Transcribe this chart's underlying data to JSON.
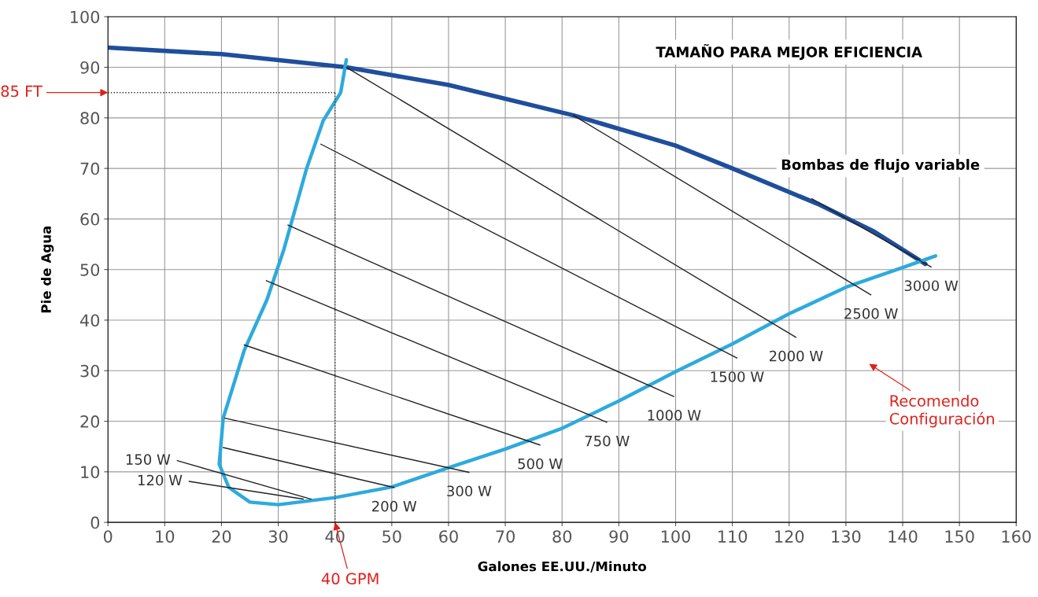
{
  "chart_data": {
    "type": "line",
    "xlabel": "Galones EE.UU./Minuto",
    "ylabel": "Pie de Agua",
    "xlim": [
      0,
      160
    ],
    "ylim": [
      0,
      100
    ],
    "xticks": [
      0,
      10,
      20,
      30,
      40,
      50,
      60,
      70,
      80,
      90,
      100,
      110,
      120,
      130,
      140,
      150,
      160
    ],
    "yticks": [
      0,
      10,
      20,
      30,
      40,
      50,
      60,
      70,
      80,
      90,
      100
    ],
    "grid": true,
    "legend": false,
    "marker": "none",
    "line_style": "solid",
    "series": [
      {
        "color": "#1f4e9c",
        "x": [
          0,
          20,
          42,
          60,
          82,
          100,
          110,
          125,
          135,
          144
        ],
        "values": [
          93.9,
          92.6,
          90,
          86.5,
          80.5,
          74.5,
          70,
          63,
          57.5,
          51.1
        ]
      },
      {
        "color": "#2eaadc",
        "x": [
          42,
          41,
          37.9,
          35,
          31,
          28,
          24,
          20.3,
          19.6,
          21.3,
          25,
          30,
          40,
          50,
          60,
          70,
          80,
          90,
          100,
          110,
          119.9,
          130,
          140,
          145.8
        ],
        "values": [
          91.5,
          85,
          79.4,
          70,
          54,
          44,
          34,
          20.6,
          11.5,
          6.9,
          4,
          3.5,
          4.9,
          7,
          10.8,
          14.5,
          18.6,
          24,
          29.8,
          35.3,
          41.2,
          46.5,
          50.4,
          52.7
        ]
      },
      {
        "name": "3000 W",
        "color": "#222222",
        "x": [
          124,
          145
        ],
        "values": [
          64,
          50.5
        ]
      },
      {
        "name": "2500 W",
        "color": "#222222",
        "x": [
          82,
          134.4
        ],
        "values": [
          80.5,
          45
        ]
      },
      {
        "name": "2000 W",
        "color": "#222222",
        "x": [
          42,
          121.2
        ],
        "values": [
          90,
          36.6
        ]
      },
      {
        "name": "1500 W",
        "color": "#222222",
        "x": [
          37.5,
          110.8
        ],
        "values": [
          74.8,
          32.5
        ]
      },
      {
        "name": "1000 W",
        "color": "#222222",
        "x": [
          31.7,
          99.7
        ],
        "values": [
          58.8,
          24.9
        ]
      },
      {
        "name": "750 W",
        "color": "#222222",
        "x": [
          27.9,
          87.9
        ],
        "values": [
          47.8,
          19.8
        ]
      },
      {
        "name": "500 W",
        "color": "#222222",
        "x": [
          24,
          76.1
        ],
        "values": [
          35.1,
          15.3
        ]
      },
      {
        "name": "300 W",
        "color": "#222222",
        "x": [
          20.6,
          63.6
        ],
        "values": [
          20.6,
          9.9
        ]
      },
      {
        "name": "200 W",
        "color": "#222222",
        "x": [
          20.3,
          50.4
        ],
        "values": [
          14.8,
          6.9
        ]
      },
      {
        "name": "150 W",
        "color": "#222222",
        "x": [
          35.8,
          12.2
        ],
        "values": [
          4.6,
          12.2
        ]
      },
      {
        "name": "120 W",
        "color": "#222222",
        "x": [
          34.4,
          14.3
        ],
        "values": [
          4.6,
          8.1
        ]
      },
      {
        "color": "#333333",
        "line_style": "dotted",
        "x": [
          0,
          40
        ],
        "values": [
          85,
          85
        ]
      },
      {
        "color": "#333333",
        "line_style": "dotted",
        "x": [
          40,
          40
        ],
        "values": [
          0,
          85
        ]
      }
    ],
    "annotations": [
      "TAMAÑO PARA MEJOR EFICIENCIA",
      "Bombas de flujo variable",
      {
        "text": "85 FT",
        "x": 0,
        "y": 85
      },
      {
        "text": "40 GPM",
        "x": 40,
        "y": 0
      },
      "Recomendo\nConfiguración"
    ]
  }
}
